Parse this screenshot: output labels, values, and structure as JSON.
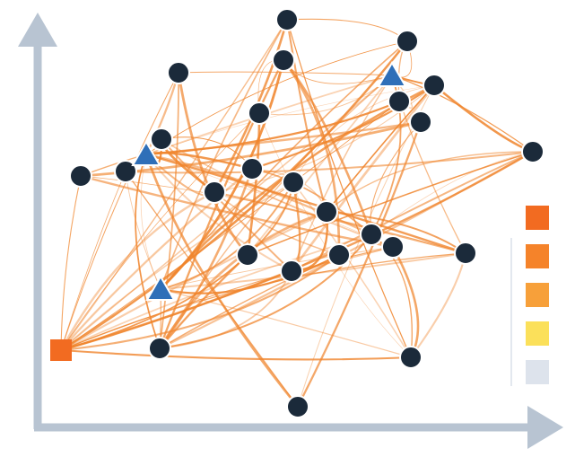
{
  "diagram": {
    "type": "network-graph",
    "axes": {
      "color": "#b8c4d2",
      "x_arrow": true,
      "y_arrow": true
    },
    "edge_color": "#f0852d",
    "node_types": [
      {
        "shape": "circle",
        "color": "#1b2a3a",
        "count": 25
      },
      {
        "shape": "triangle",
        "color": "#2f6fb8",
        "count": 3
      },
      {
        "shape": "square",
        "color": "#f26b21",
        "count": 1
      }
    ],
    "legend": {
      "swatches": [
        "#f26b21",
        "#f5832a",
        "#f7a03a",
        "#fbe05a",
        "#dde3ec"
      ]
    }
  }
}
